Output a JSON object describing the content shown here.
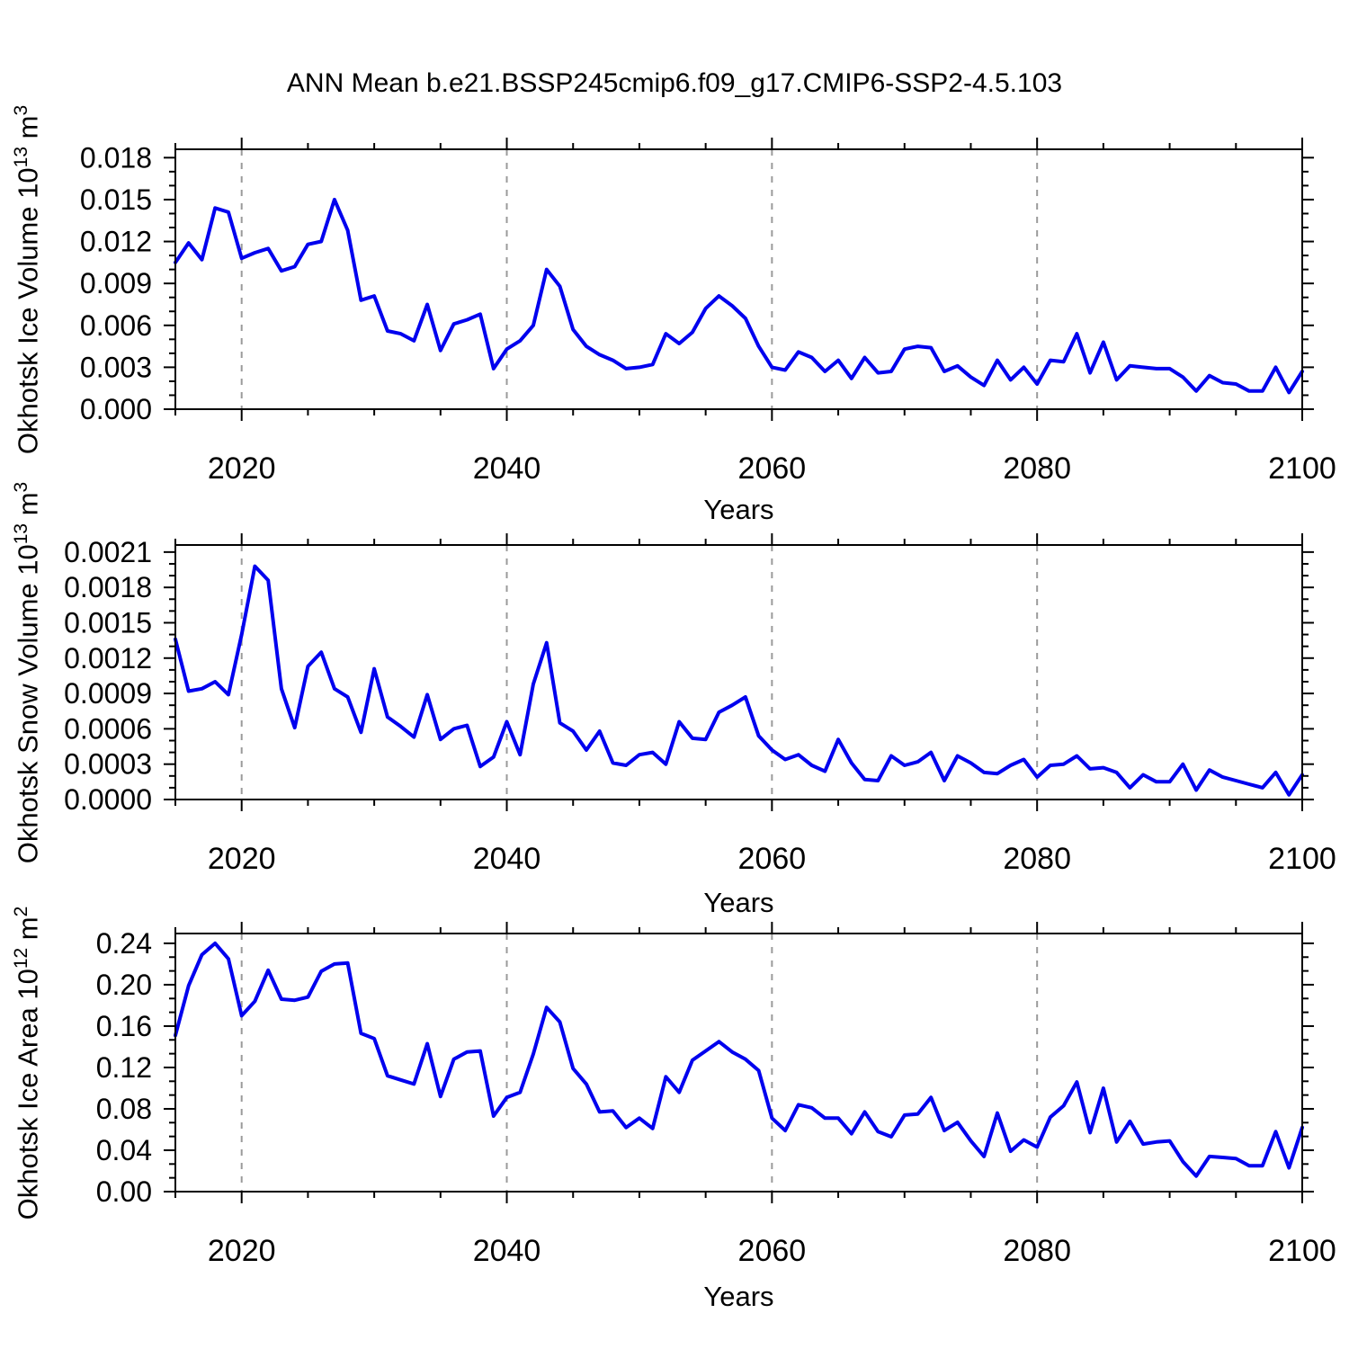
{
  "title": "ANN Mean b.e21.BSSP245cmip6.f09_g17.CMIP6-SSP2-4.5.103",
  "colors": {
    "line": "#0000ee",
    "grid": "#9a9a9a",
    "axis": "#000000",
    "text": "#000000"
  },
  "chart_data": [
    {
      "name": "ice-volume",
      "type": "line",
      "ylabel_base": "Okhotsk Ice Volume 10",
      "ylabel_exp": "13",
      "ylabel_unit": " m",
      "ylabel_unit_exp": "3",
      "xlabel": "Years",
      "x_start": 2015,
      "xlim": [
        2015,
        2100
      ],
      "ylim": [
        0,
        0.0186
      ],
      "yticks": [
        0,
        0.003,
        0.006,
        0.009,
        0.012,
        0.015,
        0.018
      ],
      "ytick_labels": [
        "0.000",
        "0.003",
        "0.006",
        "0.009",
        "0.012",
        "0.015",
        "0.018"
      ],
      "xticks": [
        2020,
        2040,
        2060,
        2080,
        2100
      ],
      "xtick_labels": [
        "2020",
        "2040",
        "2060",
        "2080",
        "2100"
      ],
      "minor_x_step": 5,
      "y_minor_divisions": 3,
      "gridlines_at": [
        2020,
        2040,
        2060,
        2080
      ],
      "legend": "none",
      "values": [
        0.0105,
        0.0119,
        0.0107,
        0.0144,
        0.0141,
        0.0108,
        0.0112,
        0.0115,
        0.0099,
        0.0102,
        0.0118,
        0.012,
        0.015,
        0.0128,
        0.0078,
        0.0081,
        0.0056,
        0.0054,
        0.0049,
        0.0075,
        0.0042,
        0.0061,
        0.0064,
        0.0068,
        0.0029,
        0.0043,
        0.0049,
        0.006,
        0.01,
        0.0088,
        0.0057,
        0.0045,
        0.0039,
        0.0035,
        0.0029,
        0.003,
        0.0032,
        0.0054,
        0.0047,
        0.0055,
        0.0072,
        0.0081,
        0.0074,
        0.0065,
        0.0045,
        0.003,
        0.0028,
        0.0041,
        0.0037,
        0.0027,
        0.0035,
        0.0022,
        0.0037,
        0.0026,
        0.0027,
        0.0043,
        0.0045,
        0.0044,
        0.0027,
        0.0031,
        0.0023,
        0.0017,
        0.0035,
        0.0021,
        0.003,
        0.0018,
        0.0035,
        0.0034,
        0.0054,
        0.0026,
        0.0048,
        0.0021,
        0.0031,
        0.003,
        0.0029,
        0.0029,
        0.0023,
        0.0013,
        0.0024,
        0.0019,
        0.0018,
        0.0013,
        0.0013,
        0.003,
        0.0012,
        0.0027
      ]
    },
    {
      "name": "snow-volume",
      "type": "line",
      "ylabel_base": "Okhotsk Snow Volume 10",
      "ylabel_exp": "13",
      "ylabel_unit": " m",
      "ylabel_unit_exp": "3",
      "xlabel": "Years",
      "x_start": 2015,
      "xlim": [
        2015,
        2100
      ],
      "ylim": [
        0,
        0.00216
      ],
      "yticks": [
        0,
        0.0003,
        0.0006,
        0.0009,
        0.0012,
        0.0015,
        0.0018,
        0.0021
      ],
      "ytick_labels": [
        "0.0000",
        "0.0003",
        "0.0006",
        "0.0009",
        "0.0012",
        "0.0015",
        "0.0018",
        "0.0021"
      ],
      "xticks": [
        2020,
        2040,
        2060,
        2080,
        2100
      ],
      "xtick_labels": [
        "2020",
        "2040",
        "2060",
        "2080",
        "2100"
      ],
      "minor_x_step": 5,
      "y_minor_divisions": 3,
      "gridlines_at": [
        2020,
        2040,
        2060,
        2080
      ],
      "legend": "none",
      "values": [
        0.00136,
        0.00092,
        0.00094,
        0.001,
        0.00089,
        0.0014,
        0.00198,
        0.00186,
        0.00094,
        0.00061,
        0.00113,
        0.00125,
        0.00094,
        0.00087,
        0.00057,
        0.00111,
        0.0007,
        0.00062,
        0.00053,
        0.00089,
        0.00051,
        0.0006,
        0.00063,
        0.00028,
        0.00036,
        0.00066,
        0.00038,
        0.00098,
        0.00133,
        0.00065,
        0.00058,
        0.00042,
        0.00058,
        0.00031,
        0.00029,
        0.00038,
        0.0004,
        0.0003,
        0.00066,
        0.00052,
        0.00051,
        0.00074,
        0.0008,
        0.00087,
        0.00054,
        0.00042,
        0.00034,
        0.00038,
        0.00029,
        0.00024,
        0.00051,
        0.00031,
        0.00017,
        0.00016,
        0.00037,
        0.00029,
        0.00032,
        0.0004,
        0.00016,
        0.00037,
        0.00031,
        0.00023,
        0.00022,
        0.00029,
        0.00034,
        0.00019,
        0.00029,
        0.0003,
        0.00037,
        0.00026,
        0.00027,
        0.00023,
        0.0001,
        0.00021,
        0.00015,
        0.00015,
        0.0003,
        8e-05,
        0.00025,
        0.00019,
        0.00016,
        0.00013,
        0.0001,
        0.00023,
        4e-05,
        0.00021
      ]
    },
    {
      "name": "ice-area",
      "type": "line",
      "ylabel_base": "Okhotsk Ice Area 10",
      "ylabel_exp": "12",
      "ylabel_unit": " m",
      "ylabel_unit_exp": "2",
      "xlabel": "Years",
      "x_start": 2015,
      "xlim": [
        2015,
        2100
      ],
      "ylim": [
        0,
        0.2495
      ],
      "yticks": [
        0,
        0.04,
        0.08,
        0.12,
        0.16,
        0.2,
        0.24
      ],
      "ytick_labels": [
        "0.00",
        "0.04",
        "0.08",
        "0.12",
        "0.16",
        "0.20",
        "0.24"
      ],
      "xticks": [
        2020,
        2040,
        2060,
        2080,
        2100
      ],
      "xtick_labels": [
        "2020",
        "2040",
        "2060",
        "2080",
        "2100"
      ],
      "minor_x_step": 5,
      "y_minor_divisions": 3,
      "gridlines_at": [
        2020,
        2040,
        2060,
        2080
      ],
      "legend": "none",
      "values": [
        0.151,
        0.199,
        0.229,
        0.24,
        0.225,
        0.17,
        0.184,
        0.214,
        0.186,
        0.185,
        0.188,
        0.213,
        0.22,
        0.221,
        0.153,
        0.148,
        0.112,
        0.108,
        0.104,
        0.143,
        0.092,
        0.128,
        0.135,
        0.136,
        0.073,
        0.091,
        0.096,
        0.133,
        0.178,
        0.164,
        0.119,
        0.104,
        0.077,
        0.078,
        0.062,
        0.071,
        0.061,
        0.111,
        0.096,
        0.127,
        0.136,
        0.145,
        0.135,
        0.128,
        0.117,
        0.071,
        0.059,
        0.084,
        0.081,
        0.071,
        0.071,
        0.056,
        0.077,
        0.058,
        0.053,
        0.074,
        0.075,
        0.091,
        0.059,
        0.067,
        0.049,
        0.034,
        0.076,
        0.039,
        0.05,
        0.043,
        0.072,
        0.083,
        0.106,
        0.057,
        0.1,
        0.048,
        0.068,
        0.046,
        0.048,
        0.049,
        0.029,
        0.015,
        0.034,
        0.033,
        0.032,
        0.025,
        0.025,
        0.058,
        0.023,
        0.062
      ]
    }
  ]
}
